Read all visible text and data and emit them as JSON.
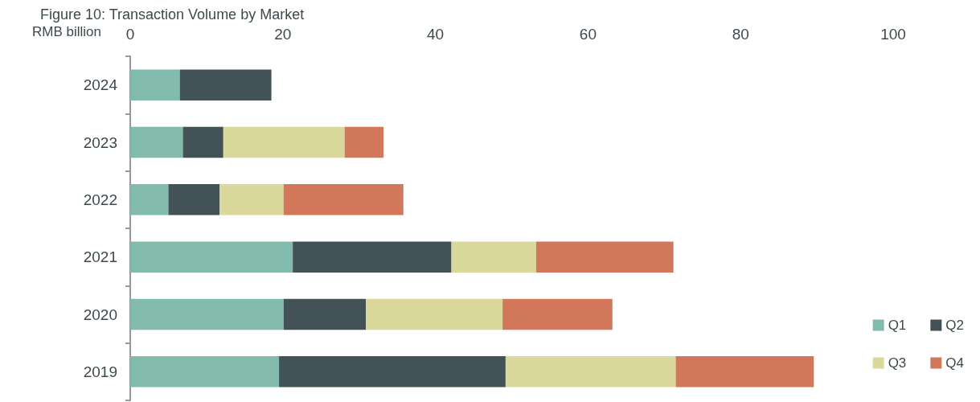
{
  "chart_data": {
    "type": "bar",
    "orientation": "horizontal",
    "stacked": true,
    "title": "Figure 10: Transaction Volume by Market",
    "xlabel": "RMB billion",
    "categories": [
      "2024",
      "2023",
      "2022",
      "2021",
      "2020",
      "2019"
    ],
    "series": [
      {
        "name": "Q1",
        "color": "#82bbac",
        "values": [
          6.5,
          6.9,
          5.0,
          21.3,
          20.1,
          19.5
        ]
      },
      {
        "name": "Q2",
        "color": "#435256",
        "values": [
          12.0,
          5.3,
          6.7,
          20.8,
          10.8,
          29.7
        ]
      },
      {
        "name": "Q3",
        "color": "#dad89b",
        "values": [
          null,
          15.9,
          8.4,
          11.1,
          17.9,
          22.3
        ]
      },
      {
        "name": "Q4",
        "color": "#d2775a",
        "values": [
          null,
          5.1,
          15.7,
          18.0,
          14.4,
          18.1
        ]
      }
    ],
    "xlim": [
      0,
      100
    ],
    "xticks": [
      0,
      20,
      40,
      60,
      80,
      100
    ],
    "grid": false,
    "legend": "bottom right"
  }
}
